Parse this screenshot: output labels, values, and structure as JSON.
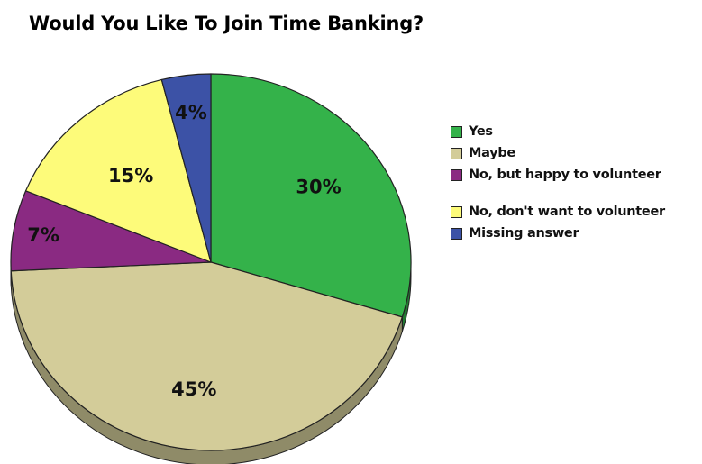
{
  "chart_data": {
    "type": "pie",
    "title": "Would You Like To Join Time Banking?",
    "categories": [
      "Yes",
      "Maybe",
      "No, but happy to volunteer",
      "No, don't want to volunteer",
      "Missing answer"
    ],
    "values": [
      30,
      45,
      7,
      15,
      4
    ],
    "value_labels": [
      "30%",
      "45%",
      "7%",
      "15%",
      "4%"
    ],
    "colors": [
      "#34b24a",
      "#d3cc99",
      "#8a2a82",
      "#fdfb7a",
      "#3c52a6"
    ],
    "legend": "right",
    "style": "3d"
  }
}
